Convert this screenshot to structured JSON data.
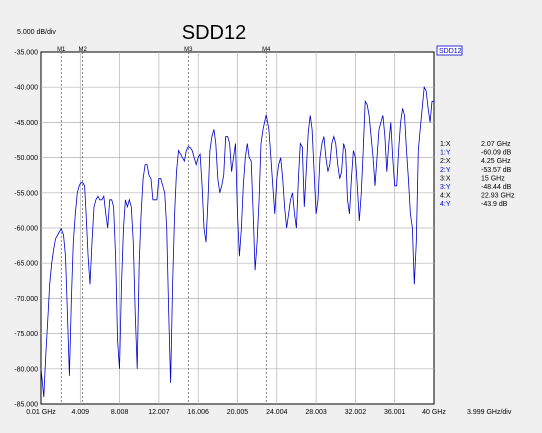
{
  "chart_data": {
    "type": "line",
    "title": "SDD12",
    "y_scale_label": "5.000 dB/div",
    "x_scale_label": "3.999 GHz/div",
    "legend": "SDD12",
    "xlim": [
      0.01,
      40
    ],
    "ylim": [
      -85,
      -35
    ],
    "x_tick_labels": [
      "0.01 GHz",
      "4.009",
      "8.008",
      "12.007",
      "16.006",
      "20.005",
      "24.004",
      "28.003",
      "32.002",
      "36.001",
      "40 GHz"
    ],
    "y_tick_labels": [
      "-35.000",
      "-40.000",
      "-45.000",
      "-50.000",
      "-55.000",
      "-60.000",
      "-65.000",
      "-70.000",
      "-75.000",
      "-80.000",
      "-85.000"
    ],
    "series": [
      {
        "name": "SDD12",
        "color": "#0000cc",
        "x": [
          0.01,
          0.3,
          0.5,
          0.7,
          0.9,
          1.1,
          1.3,
          1.5,
          1.7,
          1.9,
          2.07,
          2.3,
          2.5,
          2.7,
          2.9,
          3.1,
          3.3,
          3.5,
          3.7,
          3.9,
          4.05,
          4.25,
          4.45,
          4.6,
          4.8,
          5.0,
          5.2,
          5.4,
          5.6,
          5.8,
          6.0,
          6.2,
          6.4,
          6.6,
          6.8,
          7.0,
          7.2,
          7.4,
          7.6,
          7.8,
          8.0,
          8.2,
          8.4,
          8.6,
          8.8,
          9.0,
          9.2,
          9.4,
          9.6,
          9.8,
          10.0,
          10.2,
          10.4,
          10.6,
          10.8,
          11.0,
          11.2,
          11.4,
          11.6,
          11.8,
          12.0,
          12.2,
          12.4,
          12.6,
          12.8,
          13.0,
          13.2,
          13.4,
          13.6,
          13.8,
          14.0,
          14.2,
          14.4,
          14.6,
          14.8,
          15.0,
          15.2,
          15.4,
          15.6,
          15.8,
          16.0,
          16.2,
          16.4,
          16.6,
          16.8,
          17.0,
          17.2,
          17.4,
          17.6,
          17.8,
          18.0,
          18.2,
          18.4,
          18.6,
          18.8,
          19.0,
          19.2,
          19.4,
          19.6,
          19.8,
          20.0,
          20.2,
          20.4,
          20.6,
          20.8,
          21.0,
          21.2,
          21.4,
          21.6,
          21.8,
          22.0,
          22.2,
          22.4,
          22.6,
          22.93,
          23.2,
          23.4,
          23.6,
          23.8,
          24.0,
          24.2,
          24.4,
          24.6,
          24.8,
          25.0,
          25.2,
          25.4,
          25.6,
          25.8,
          26.0,
          26.2,
          26.4,
          26.6,
          26.8,
          27.0,
          27.2,
          27.4,
          27.6,
          27.8,
          28.0,
          28.2,
          28.4,
          28.6,
          28.8,
          29.0,
          29.2,
          29.4,
          29.6,
          29.8,
          30.0,
          30.2,
          30.4,
          30.6,
          30.8,
          31.0,
          31.2,
          31.4,
          31.6,
          31.8,
          32.0,
          32.2,
          32.4,
          32.6,
          32.8,
          33.0,
          33.2,
          33.4,
          33.6,
          33.8,
          34.0,
          34.2,
          34.4,
          34.6,
          34.8,
          35.0,
          35.2,
          35.4,
          35.6,
          35.8,
          36.0,
          36.2,
          36.4,
          36.6,
          36.8,
          37.0,
          37.2,
          37.4,
          37.6,
          37.8,
          38.0,
          38.2,
          38.4,
          38.6,
          38.8,
          39.0,
          39.2,
          39.4,
          39.6,
          39.8,
          40.0
        ],
        "y": [
          -80,
          -84,
          -78,
          -73,
          -68,
          -65,
          -63,
          -61.5,
          -61,
          -60.5,
          -60.09,
          -61,
          -64,
          -72,
          -81,
          -70,
          -62,
          -58,
          -55,
          -54,
          -53.6,
          -53.57,
          -54,
          -58,
          -64,
          -68,
          -62,
          -57,
          -56,
          -55.5,
          -56,
          -56,
          -55.5,
          -58,
          -60,
          -56,
          -56,
          -57,
          -64,
          -76,
          -80,
          -68,
          -60,
          -56,
          -57,
          -56,
          -57,
          -62,
          -72,
          -80,
          -65,
          -58,
          -53,
          -51,
          -51,
          -52.5,
          -53,
          -56,
          -56,
          -56,
          -53,
          -53,
          -54,
          -55,
          -60,
          -72,
          -82,
          -68,
          -58,
          -52,
          -49,
          -49.5,
          -50,
          -50.5,
          -49,
          -48.44,
          -48.6,
          -49,
          -50,
          -51,
          -50,
          -49.5,
          -54,
          -60,
          -62,
          -56,
          -49,
          -47,
          -46,
          -48,
          -53,
          -55,
          -54,
          -52.5,
          -47,
          -47,
          -48,
          -52,
          -50,
          -48,
          -58,
          -64,
          -60,
          -54,
          -50,
          -48,
          -50,
          -50.5,
          -58,
          -66,
          -62,
          -56,
          -48,
          -46,
          -43.9,
          -46,
          -50,
          -54,
          -58,
          -53,
          -51,
          -50,
          -53,
          -57,
          -60,
          -58,
          -56,
          -55,
          -58,
          -60,
          -53,
          -48,
          -48.5,
          -57,
          -52,
          -46.5,
          -44,
          -46,
          -52,
          -58,
          -56,
          -50,
          -48,
          -47,
          -50,
          -52,
          -51,
          -48,
          -47,
          -48,
          -51,
          -53,
          -52,
          -48,
          -49,
          -56,
          -58,
          -53,
          -49,
          -50,
          -54,
          -59,
          -55,
          -49,
          -42,
          -42.5,
          -44,
          -47,
          -50,
          -54,
          -50,
          -46,
          -45,
          -44,
          -47,
          -52,
          -48,
          -45,
          -50,
          -54,
          -54,
          -49,
          -45,
          -43,
          -44,
          -49,
          -53,
          -58,
          -60,
          -68,
          -62,
          -49,
          -46,
          -43,
          -40,
          -40.5,
          -43,
          -45,
          -42,
          -42
        ]
      }
    ],
    "markers": [
      {
        "label": "M1",
        "x": 2.07,
        "y": -60.09
      },
      {
        "label": "M2",
        "x": 4.25,
        "y": -53.57
      },
      {
        "label": "M3",
        "x": 15,
        "y": -48.44
      },
      {
        "label": "M4",
        "x": 22.93,
        "y": -43.9
      }
    ],
    "readout": [
      {
        "label": "1:X",
        "value": "2.07 GHz",
        "color": "#000000"
      },
      {
        "label": "1:Y",
        "value": "-60.09 dB",
        "color": "#0000cc"
      },
      {
        "label": "2:X",
        "value": "4.25 GHz",
        "color": "#000000"
      },
      {
        "label": "2:Y",
        "value": "-53.57 dB",
        "color": "#0000cc"
      },
      {
        "label": "3:X",
        "value": "15 GHz",
        "color": "#000000"
      },
      {
        "label": "3:Y",
        "value": "-48.44 dB",
        "color": "#0000cc"
      },
      {
        "label": "4:X",
        "value": "22.93 GHz",
        "color": "#000000"
      },
      {
        "label": "4:Y",
        "value": "-43.9 dB",
        "color": "#0000cc"
      }
    ]
  }
}
